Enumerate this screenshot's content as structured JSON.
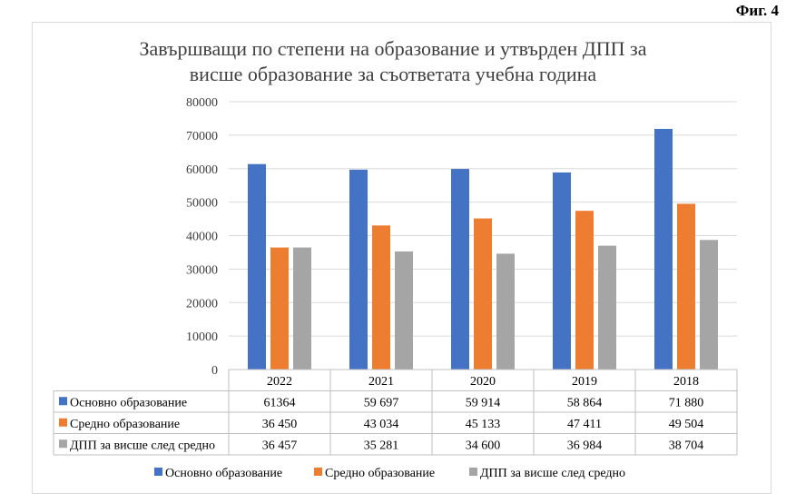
{
  "figure_label": "Фиг. 4",
  "chart_data": {
    "type": "bar",
    "title_lines": [
      "Завършващи по степени на образование и утвърден ДПП за",
      "висше образование за съответата учебна година"
    ],
    "categories": [
      "2022",
      "2021",
      "2020",
      "2019",
      "2018"
    ],
    "ylim": [
      0,
      80000
    ],
    "yticks": [
      "0",
      "10000",
      "20000",
      "30000",
      "40000",
      "50000",
      "60000",
      "70000",
      "80000"
    ],
    "grid": true,
    "legend_position": "bottom",
    "series": [
      {
        "name": "Основно образование",
        "color": "#4472c4",
        "values": [
          61364,
          59697,
          59914,
          58864,
          71880
        ],
        "labels": [
          "61364",
          "59 697",
          "59 914",
          "58 864",
          "71 880"
        ]
      },
      {
        "name": "Средно образование",
        "color": "#ed7d31",
        "values": [
          36450,
          43034,
          45133,
          47411,
          49504
        ],
        "labels": [
          "36 450",
          "43 034",
          "45 133",
          "47 411",
          "49 504"
        ]
      },
      {
        "name": "ДПП за висше след средно",
        "color": "#a5a5a5",
        "values": [
          36457,
          35281,
          34600,
          36984,
          38704
        ],
        "labels": [
          "36 457",
          "35 281",
          "34 600",
          "36 984",
          "38 704"
        ]
      }
    ]
  }
}
